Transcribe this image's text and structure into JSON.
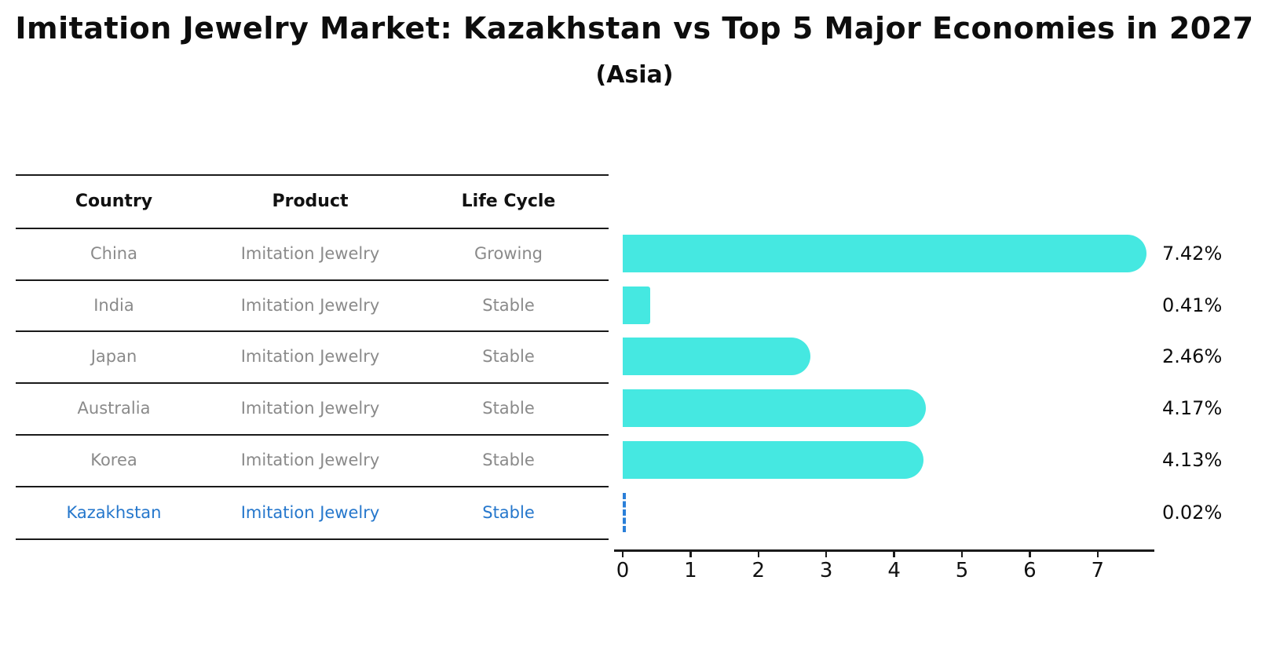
{
  "title": "Imitation Jewelry Market: Kazakhstan vs Top 5 Major Economies in 2027",
  "subtitle": "(Asia)",
  "table": {
    "headers": [
      "Country",
      "Product",
      "Life Cycle"
    ],
    "rows": [
      {
        "country": "China",
        "product": "Imitation Jewelry",
        "life_cycle": "Growing",
        "highlight": false
      },
      {
        "country": "India",
        "product": "Imitation Jewelry",
        "life_cycle": "Stable",
        "highlight": false
      },
      {
        "country": "Japan",
        "product": "Imitation Jewelry",
        "life_cycle": "Stable",
        "highlight": false
      },
      {
        "country": "Australia",
        "product": "Imitation Jewelry",
        "life_cycle": "Stable",
        "highlight": false
      },
      {
        "country": "Korea",
        "product": "Imitation Jewelry",
        "life_cycle": "Stable",
        "highlight": false
      },
      {
        "country": "Kazakhstan",
        "product": "Imitation Jewelry",
        "life_cycle": "Stable",
        "highlight": true
      }
    ]
  },
  "chart_data": {
    "type": "bar",
    "orientation": "horizontal",
    "title": "Imitation Jewelry Market: Kazakhstan vs Top 5 Major Economies in 2027",
    "subtitle": "(Asia)",
    "categories": [
      "China",
      "India",
      "Japan",
      "Australia",
      "Korea",
      "Kazakhstan"
    ],
    "values": [
      7.42,
      0.41,
      2.46,
      4.17,
      4.13,
      0.02
    ],
    "value_labels": [
      "7.42%",
      "0.41%",
      "2.46%",
      "4.17%",
      "4.13%",
      "0.02%"
    ],
    "xlabel": "",
    "ylabel": "",
    "xlim": [
      0,
      7.8
    ],
    "xticks": [
      "0",
      "1",
      "2",
      "3",
      "4",
      "5",
      "6",
      "7"
    ],
    "grid": false,
    "legend": false,
    "highlight_index": 5
  },
  "colors": {
    "bar": "#45e8e1",
    "highlight_bar": "#2a7fd9",
    "highlight_text": "#2577cc",
    "table_text": "#8a8a8a",
    "header_text": "#111111",
    "line": "#1a1a1a",
    "value_text": "#0d0d0d"
  }
}
